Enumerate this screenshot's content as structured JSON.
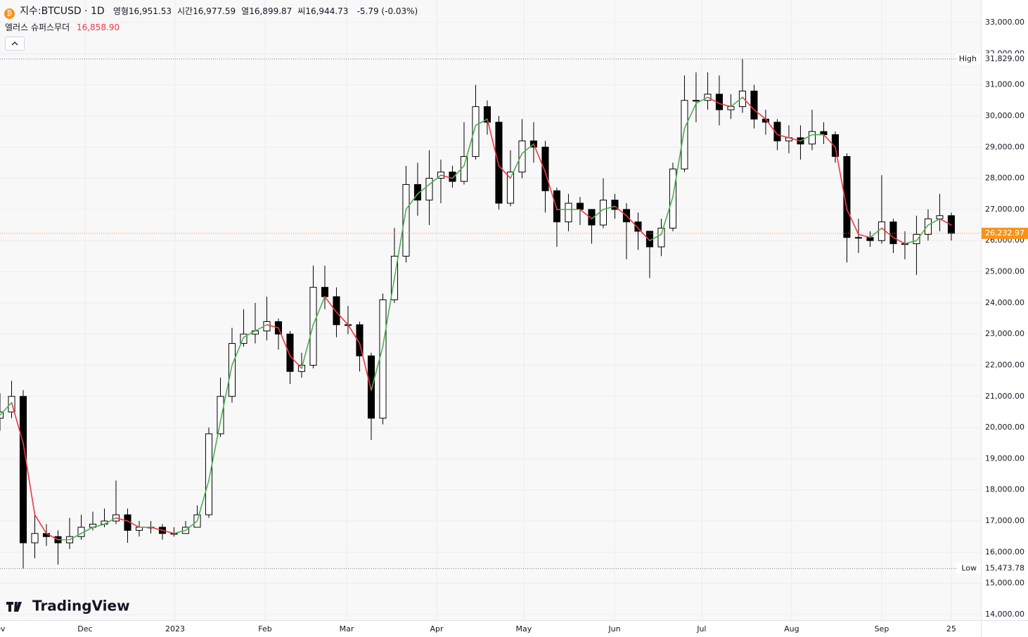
{
  "header": {
    "symbol": "지수:BTCUSD · 1D",
    "ohlc": [
      {
        "label": "영형",
        "value": "16,951.53"
      },
      {
        "label": "시간",
        "value": "16,977.59"
      },
      {
        "label": "열",
        "value": "16,899.87"
      },
      {
        "label": "씨",
        "value": "16,944.73"
      }
    ],
    "change": "-5.79 (-0.03%)",
    "indicator": {
      "name": "엘러스 슈퍼스무더",
      "value": "16,858.90"
    },
    "logo": "TradingView"
  },
  "chart_data": {
    "type": "candlestick",
    "up_color": "#ffffff",
    "down_color": "#000000",
    "smoother_up_color": "#4caf50",
    "smoother_down_color": "#f23645",
    "grid": true,
    "xlim": [
      0,
      84.55
    ],
    "ylim": [
      13819,
      33722
    ],
    "xticks": [
      {
        "value": -0.2,
        "label": "Nov"
      },
      {
        "value": 7.33,
        "label": "Dec"
      },
      {
        "value": 15.09,
        "label": "2023"
      },
      {
        "value": 22.85,
        "label": "Feb"
      },
      {
        "value": 29.88,
        "label": "Mar"
      },
      {
        "value": 37.64,
        "label": "Apr"
      },
      {
        "value": 45.15,
        "label": "May"
      },
      {
        "value": 52.97,
        "label": "Jun"
      },
      {
        "value": 60.48,
        "label": "Jul"
      },
      {
        "value": 68.24,
        "label": "Aug"
      },
      {
        "value": 76,
        "label": "Sep"
      },
      {
        "value": 82,
        "label": "25"
      }
    ],
    "yticks": [
      {
        "value": 14000,
        "label": "14,000.00"
      },
      {
        "value": 15000,
        "label": "15,000.00"
      },
      {
        "value": 16000,
        "label": "16,000.00"
      },
      {
        "value": 17000,
        "label": "17,000.00"
      },
      {
        "value": 18000,
        "label": "18,000.00"
      },
      {
        "value": 19000,
        "label": "19,000.00"
      },
      {
        "value": 20000,
        "label": "20,000.00"
      },
      {
        "value": 21000,
        "label": "21,000.00"
      },
      {
        "value": 22000,
        "label": "22,000.00"
      },
      {
        "value": 23000,
        "label": "23,000.00"
      },
      {
        "value": 24000,
        "label": "24,000.00"
      },
      {
        "value": 25000,
        "label": "25,000.00"
      },
      {
        "value": 26000,
        "label": "26,000.00"
      },
      {
        "value": 27000,
        "label": "27,000.00"
      },
      {
        "value": 28000,
        "label": "28,000.00"
      },
      {
        "value": 29000,
        "label": "29,000.00"
      },
      {
        "value": 30000,
        "label": "30,000.00"
      },
      {
        "value": 31000,
        "label": "31,000.00"
      },
      {
        "value": 32000,
        "label": "32,000.00"
      },
      {
        "value": 33000,
        "label": "33,000.00"
      }
    ],
    "open": [
      20300,
      20500,
      21000,
      16300,
      16600,
      16500,
      16300,
      16500,
      16800,
      16900,
      17000,
      17200,
      16700,
      16800,
      16800,
      16600,
      16600,
      16800,
      17200,
      19800,
      21000,
      22700,
      23000,
      23100,
      23400,
      23000,
      21800,
      22000,
      24500,
      24200,
      23300,
      23300,
      22300,
      20300,
      24100,
      25500,
      27800,
      27300,
      28000,
      28200,
      27900,
      28700,
      30300,
      29800,
      27200,
      28200,
      29200,
      29000,
      27600,
      26600,
      27200,
      27000,
      26500,
      27300,
      27000,
      26600,
      26300,
      25800,
      26400,
      28300,
      30500,
      30500,
      30700,
      30200,
      30300,
      30800,
      29900,
      29800,
      29200,
      29300,
      29100,
      29500,
      29400,
      28700,
      26100,
      26100,
      26000,
      26600,
      25900,
      25900,
      26200,
      26700,
      26800
    ],
    "high": [
      21100,
      21500,
      21200,
      17200,
      16900,
      16700,
      17100,
      17200,
      17300,
      17400,
      18300,
      17400,
      17000,
      17000,
      16900,
      16800,
      17000,
      17500,
      20000,
      21600,
      23200,
      23800,
      24000,
      24200,
      23500,
      23100,
      22400,
      25200,
      25200,
      24500,
      23900,
      23400,
      22400,
      24300,
      26400,
      28400,
      28500,
      28900,
      28600,
      28400,
      29800,
      31000,
      30500,
      30000,
      28900,
      29900,
      29800,
      29200,
      27700,
      27500,
      27400,
      27000,
      28000,
      27500,
      27200,
      26900,
      26300,
      26700,
      28500,
      31300,
      31400,
      31400,
      31300,
      30700,
      31829,
      31000,
      30200,
      29900,
      29700,
      29700,
      30200,
      29800,
      29500,
      28800,
      26700,
      26300,
      28100,
      26700,
      26300,
      26800,
      27000,
      27500,
      26900
    ],
    "low": [
      19900,
      20300,
      15473.78,
      15800,
      16200,
      15600,
      16100,
      16400,
      16700,
      16800,
      16900,
      16300,
      16500,
      16600,
      16400,
      16500,
      16600,
      16800,
      17100,
      19700,
      20800,
      22600,
      22700,
      22800,
      22500,
      21400,
      21600,
      21900,
      23800,
      22900,
      23000,
      21800,
      19600,
      20100,
      24000,
      25300,
      26800,
      26500,
      27200,
      27700,
      27800,
      28600,
      29400,
      27000,
      27100,
      28000,
      28500,
      26900,
      25800,
      26300,
      26500,
      25900,
      26400,
      26700,
      25400,
      25700,
      24800,
      25500,
      26300,
      28200,
      29800,
      30200,
      29700,
      29900,
      30100,
      29600,
      29400,
      28900,
      28800,
      28600,
      28900,
      29100,
      28500,
      25300,
      25600,
      25800,
      25900,
      25600,
      25400,
      24900,
      26000,
      26300,
      26000
    ],
    "close": [
      20500,
      21000,
      16300,
      16600,
      16500,
      16300,
      16500,
      16800,
      16900,
      17000,
      17200,
      16700,
      16800,
      16800,
      16600,
      16600,
      16800,
      17200,
      19800,
      21000,
      22700,
      23000,
      23100,
      23400,
      23000,
      21800,
      22000,
      24500,
      24200,
      23300,
      23300,
      22300,
      20300,
      24100,
      25500,
      27800,
      27300,
      28000,
      28200,
      27900,
      28700,
      30300,
      29800,
      27200,
      28200,
      29200,
      29000,
      27600,
      26600,
      27200,
      27000,
      26500,
      27300,
      27000,
      26600,
      26300,
      25800,
      26400,
      28300,
      30500,
      30500,
      30700,
      30200,
      30300,
      30800,
      29900,
      29800,
      29200,
      29300,
      29100,
      29500,
      29400,
      28700,
      26100,
      26100,
      26000,
      26600,
      25900,
      25900,
      26200,
      26700,
      26800,
      26232.97
    ],
    "smoother": [
      20400,
      20800,
      19500,
      17200,
      16600,
      16400,
      16400,
      16600,
      16800,
      16900,
      17100,
      17000,
      16800,
      16800,
      16700,
      16600,
      16700,
      17000,
      18300,
      20200,
      22000,
      22900,
      23100,
      23300,
      23200,
      22300,
      21900,
      23300,
      24200,
      23700,
      23300,
      22700,
      21200,
      22600,
      24800,
      27000,
      27500,
      27800,
      28100,
      28000,
      28400,
      29700,
      29900,
      28400,
      28000,
      28800,
      29100,
      28200,
      27000,
      27000,
      27000,
      26700,
      27000,
      27100,
      26800,
      26400,
      26000,
      26200,
      27400,
      29600,
      30400,
      30600,
      30400,
      30300,
      30600,
      30200,
      29900,
      29400,
      29300,
      29200,
      29400,
      29400,
      29000,
      27000,
      26200,
      26100,
      26400,
      26100,
      25900,
      26000,
      26500,
      26700,
      26500
    ],
    "price_lines": [
      {
        "name": "High",
        "value": 31829,
        "label": "31,829.00",
        "color": "#787b86"
      },
      {
        "name": "Low",
        "value": 15473.78,
        "label": "15,473.78",
        "color": "#787b86"
      },
      {
        "value": 26232.97,
        "label": "26,232.97",
        "color": "#f7931a"
      }
    ]
  }
}
